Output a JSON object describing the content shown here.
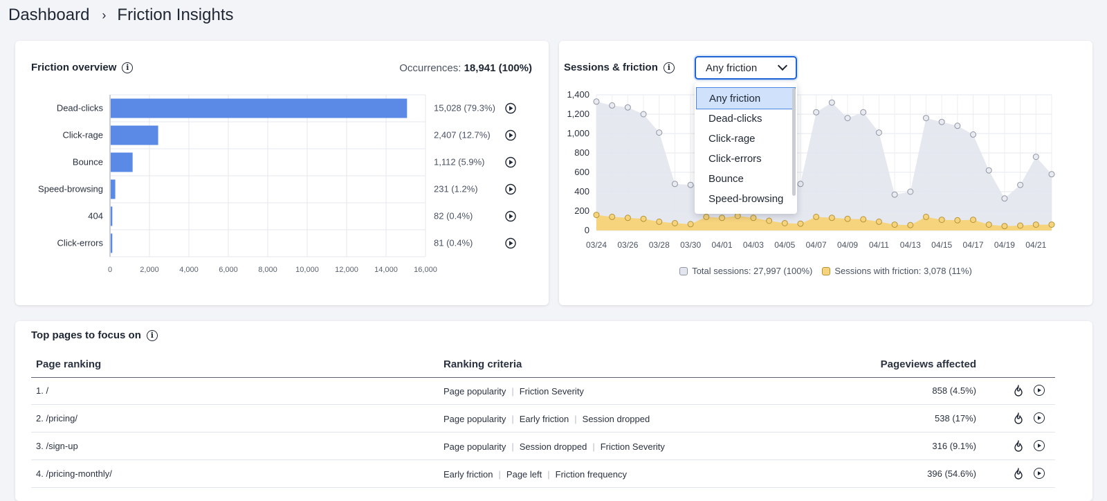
{
  "breadcrumb": {
    "root": "Dashboard",
    "separator": "›",
    "current": "Friction Insights"
  },
  "overview": {
    "title": "Friction overview",
    "occurrences_label": "Occurrences:",
    "occurrences_value": "18,941 (100%)",
    "chart_data": {
      "type": "bar",
      "orientation": "horizontal",
      "categories": [
        "Dead-clicks",
        "Click-rage",
        "Bounce",
        "Speed-browsing",
        "404",
        "Click-errors"
      ],
      "values": [
        15028,
        2407,
        1112,
        231,
        82,
        81
      ],
      "value_labels": [
        "15,028 (79.3%)",
        "2,407 (12.7%)",
        "1,112 (5.9%)",
        "231 (1.2%)",
        "82 (0.4%)",
        "81 (0.4%)"
      ],
      "xlim": [
        0,
        16000
      ],
      "xticks": [
        "0",
        "2,000",
        "4,000",
        "6,000",
        "8,000",
        "10,000",
        "12,000",
        "14,000",
        "16,000"
      ],
      "bar_color": "#5b8ae6"
    }
  },
  "sessions": {
    "title": "Sessions & friction",
    "select_value": "Any friction",
    "dropdown_options": [
      "Any friction",
      "Dead-clicks",
      "Click-rage",
      "Click-errors",
      "Bounce",
      "Speed-browsing"
    ],
    "legend": {
      "total": "Total sessions: 27,997 (100%)",
      "friction": "Sessions with friction: 3,078 (11%)"
    },
    "chart_data": {
      "type": "area",
      "x": [
        "03/24",
        "03/25",
        "03/26",
        "03/27",
        "03/28",
        "03/29",
        "03/30",
        "03/31",
        "04/01",
        "04/02",
        "04/03",
        "04/04",
        "04/05",
        "04/06",
        "04/07",
        "04/08",
        "04/09",
        "04/10",
        "04/11",
        "04/12",
        "04/13",
        "04/14",
        "04/15",
        "04/16",
        "04/17",
        "04/18",
        "04/19",
        "04/20",
        "04/21",
        "04/22"
      ],
      "xtick_labels": [
        "03/24",
        "03/26",
        "03/28",
        "03/30",
        "04/01",
        "04/03",
        "04/05",
        "04/07",
        "04/09",
        "04/11",
        "04/13",
        "04/15",
        "04/17",
        "04/19",
        "04/21"
      ],
      "ylim": [
        0,
        1400
      ],
      "yticks": [
        "0",
        "200",
        "400",
        "600",
        "800",
        "1,000",
        "1,200",
        "1,400"
      ],
      "series": [
        {
          "name": "Total sessions",
          "color": "#e3e6ee",
          "values": [
            1330,
            1290,
            1270,
            1200,
            1010,
            480,
            470,
            480,
            480,
            480,
            480,
            480,
            480,
            480,
            1220,
            1320,
            1160,
            1220,
            1010,
            370,
            400,
            1160,
            1120,
            1080,
            990,
            620,
            330,
            470,
            760,
            580
          ]
        },
        {
          "name": "Sessions with friction",
          "color": "#f6d47d",
          "values": [
            160,
            140,
            130,
            120,
            90,
            75,
            65,
            140,
            130,
            150,
            130,
            100,
            75,
            70,
            140,
            130,
            120,
            115,
            90,
            60,
            55,
            140,
            110,
            105,
            110,
            60,
            45,
            50,
            60,
            60
          ]
        }
      ]
    }
  },
  "pages": {
    "title": "Top pages to focus on",
    "columns": {
      "ranking": "Page ranking",
      "criteria": "Ranking criteria",
      "pageviews": "Pageviews affected"
    },
    "rows": [
      {
        "page": "1. /",
        "criteria": [
          "Page popularity",
          "Friction Severity"
        ],
        "pageviews": "858 (4.5%)"
      },
      {
        "page": "2. /pricing/",
        "criteria": [
          "Page popularity",
          "Early friction",
          "Session dropped"
        ],
        "pageviews": "538 (17%)"
      },
      {
        "page": "3. /sign-up",
        "criteria": [
          "Page popularity",
          "Session dropped",
          "Friction Severity"
        ],
        "pageviews": "316 (9.1%)"
      },
      {
        "page": "4. /pricing-monthly/",
        "criteria": [
          "Early friction",
          "Page left",
          "Friction frequency"
        ],
        "pageviews": "396 (54.6%)"
      }
    ]
  },
  "icons": {
    "info": "info-icon",
    "play": "play-icon",
    "heatmap": "flame-icon",
    "dropdown": "chevron-down-icon"
  }
}
